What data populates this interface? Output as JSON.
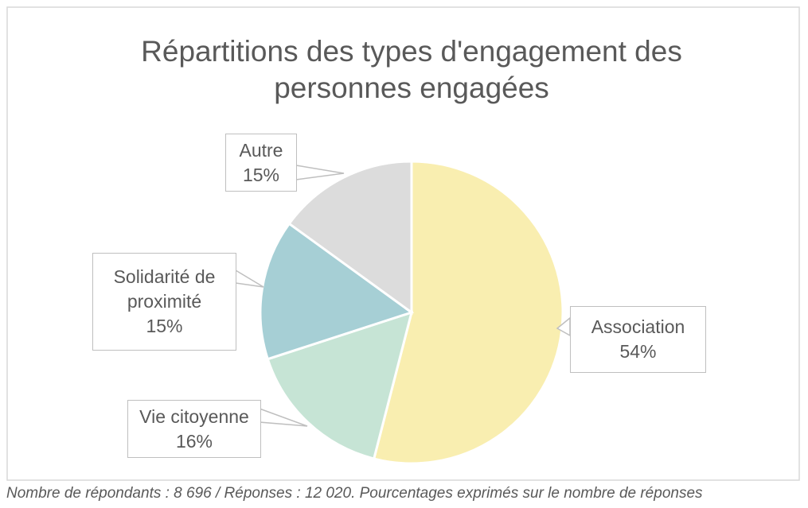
{
  "chart_data": {
    "type": "pie",
    "title": "Répartitions des types d'engagement des personnes engagées",
    "categories": [
      "Association",
      "Vie citoyenne",
      "Solidarité de proximité",
      "Autre"
    ],
    "values": [
      54,
      16,
      15,
      15
    ],
    "value_labels": [
      "54%",
      "16%",
      "15%",
      "15%"
    ],
    "colors": [
      "#f9eeb0",
      "#c6e4d5",
      "#a6cfd5",
      "#dcdcdc"
    ],
    "note": "Nombre de répondants : 8 696 / Réponses : 12 020. Pourcentages exprimés sur le nombre de réponses"
  }
}
